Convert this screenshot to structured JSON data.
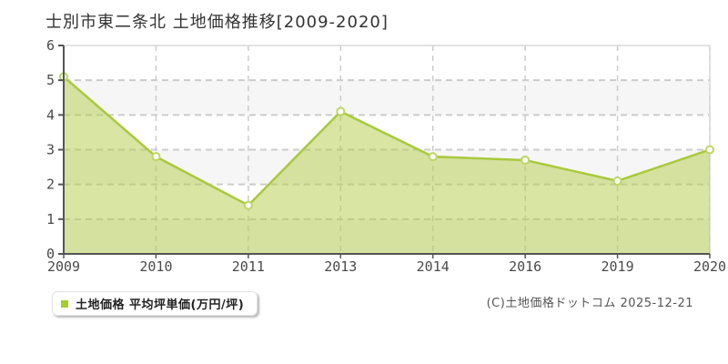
{
  "page": {
    "title": "士別市東二条北 土地価格推移[2009-2020]"
  },
  "legend": {
    "label": "土地価格 平均坪単価(万円/坪)"
  },
  "footer": {
    "credit": "(C)土地価格ドットコム 2025-12-21"
  },
  "colors": {
    "area_fill": "#b2cc47",
    "area_fill_opacity": 0.5,
    "line": "#a9c93c",
    "marker_fill": "#ffffff",
    "marker_stroke": "#bdd663",
    "band": "#f6f6f6",
    "grid": "#cccccc",
    "frame": "#d9d9d9",
    "axis": "#555555",
    "tick_text": "#4a4a4a",
    "legend_swatch": "#a6cb2d"
  },
  "chart_data": {
    "type": "area",
    "title": "士別市東二条北 土地価格推移[2009-2020]",
    "series_name": "土地価格 平均坪単価(万円/坪)",
    "categories": [
      "2009",
      "2010",
      "2011",
      "2013",
      "2014",
      "2016",
      "2019",
      "2020"
    ],
    "values": [
      5.1,
      2.8,
      1.4,
      4.1,
      2.8,
      2.7,
      2.1,
      3.0
    ],
    "unit": "万円/坪",
    "xlabel": "",
    "ylabel": "",
    "ylim": [
      0,
      6
    ],
    "yticks": [
      0,
      1,
      2,
      3,
      4,
      5,
      6
    ],
    "grid": "dashed",
    "gray_bands_between": [
      [
        5,
        4
      ],
      [
        3,
        2
      ],
      [
        1,
        0
      ]
    ],
    "legend_position": "bottom-left"
  }
}
